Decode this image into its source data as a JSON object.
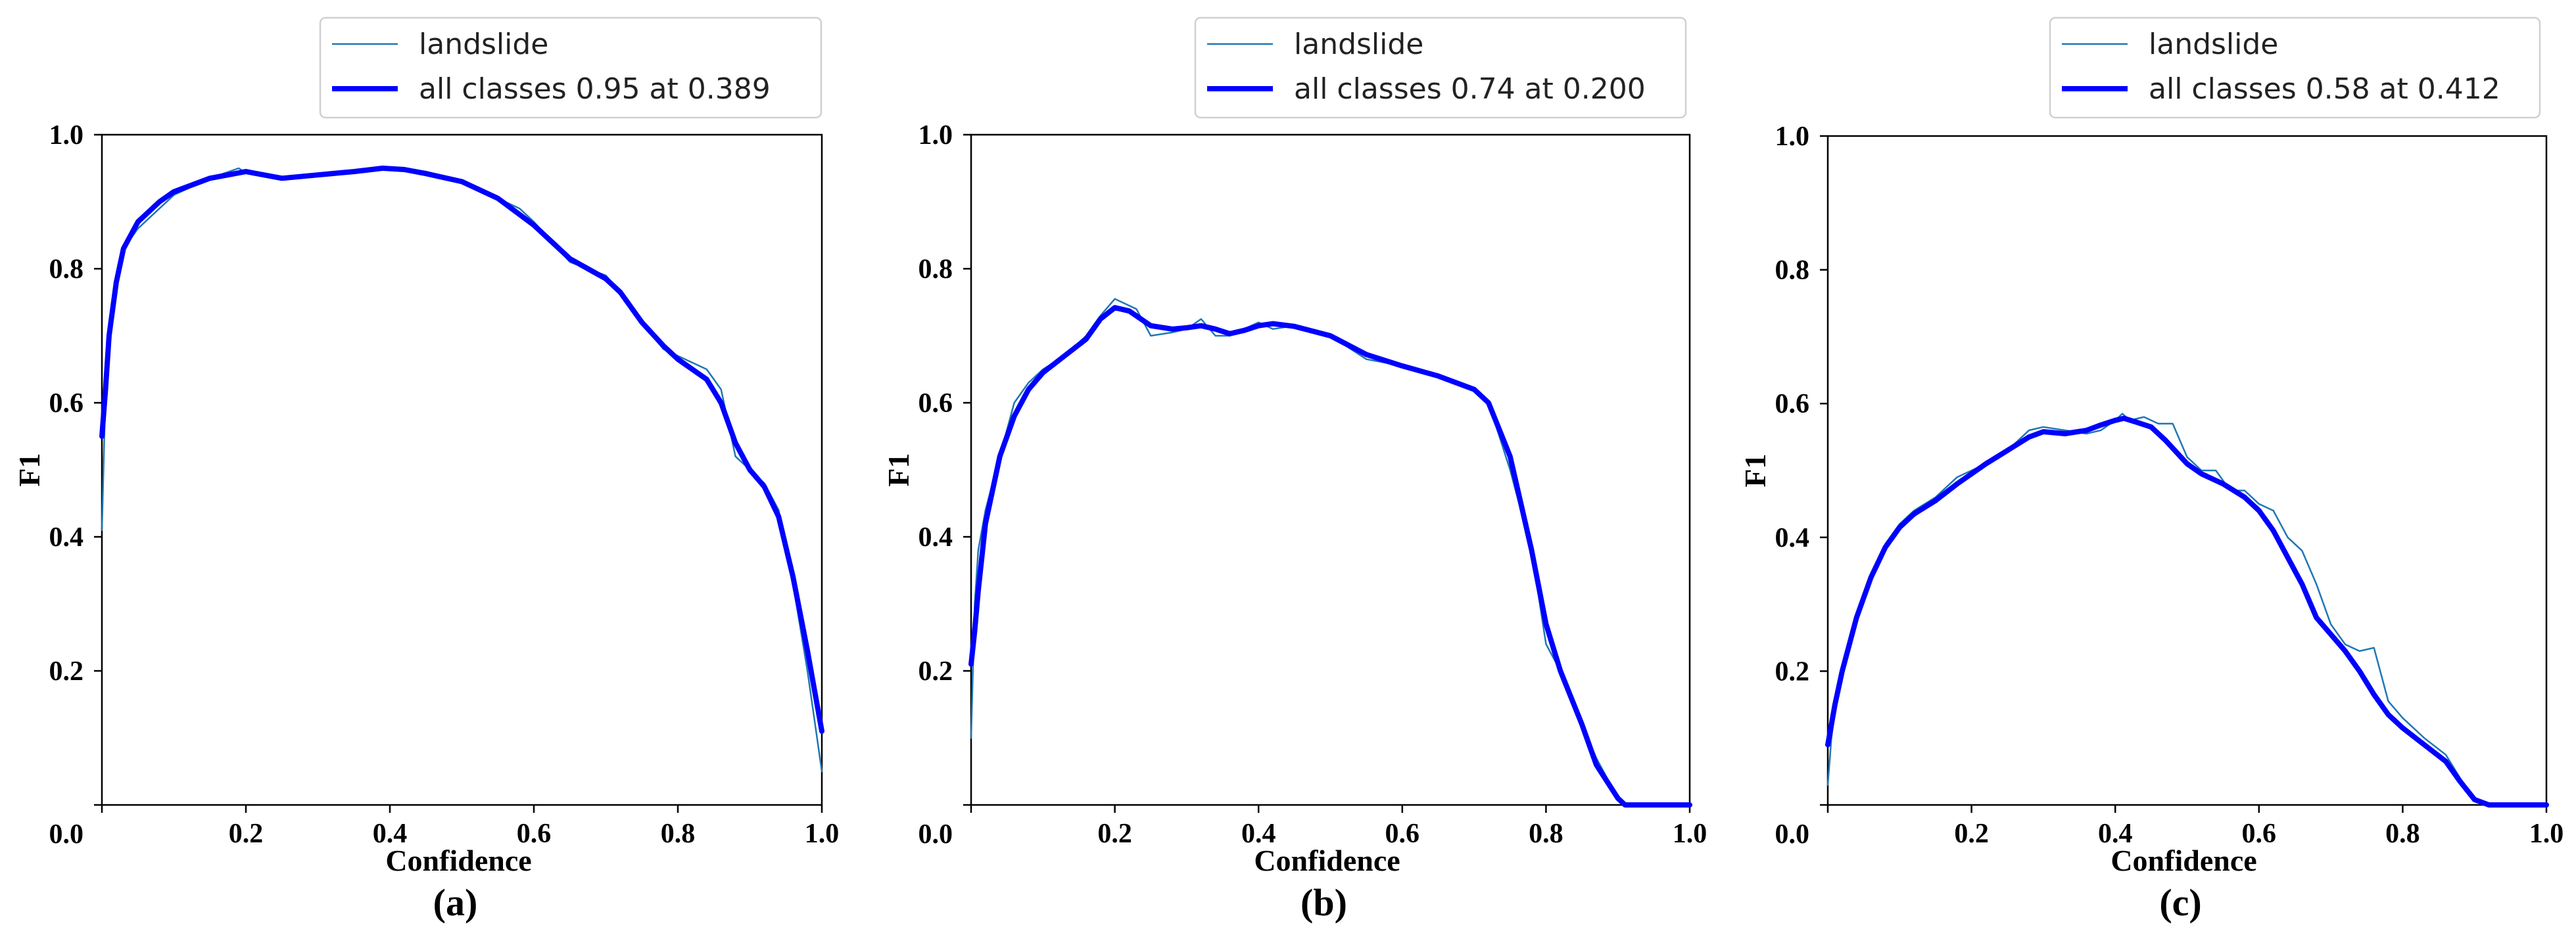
{
  "colors": {
    "landslide": "#1f77b4",
    "all_classes": "#0000ff"
  },
  "chart_data": [
    {
      "type": "line",
      "panel_label": "(a)",
      "xlabel": "Confidence",
      "ylabel": "F1",
      "xlim": [
        0,
        1
      ],
      "ylim": [
        0,
        1
      ],
      "xticks": [
        "0.0",
        "0.2",
        "0.4",
        "0.6",
        "0.8",
        "1.0"
      ],
      "yticks": [
        "0.0",
        "0.2",
        "0.4",
        "0.6",
        "0.8",
        "1.0"
      ],
      "legend_position": "top",
      "grid": false,
      "series": [
        {
          "name": "landslide",
          "x": [
            0.0,
            0.005,
            0.01,
            0.02,
            0.03,
            0.05,
            0.08,
            0.1,
            0.15,
            0.19,
            0.2,
            0.25,
            0.3,
            0.35,
            0.39,
            0.42,
            0.45,
            0.5,
            0.55,
            0.58,
            0.6,
            0.65,
            0.7,
            0.72,
            0.75,
            0.78,
            0.8,
            0.84,
            0.86,
            0.88,
            0.9,
            0.92,
            0.94,
            0.96,
            0.98,
            1.0
          ],
          "y": [
            0.41,
            0.62,
            0.72,
            0.78,
            0.83,
            0.86,
            0.89,
            0.91,
            0.935,
            0.95,
            0.943,
            0.935,
            0.94,
            0.945,
            0.952,
            0.95,
            0.945,
            0.93,
            0.905,
            0.89,
            0.87,
            0.81,
            0.79,
            0.765,
            0.72,
            0.68,
            0.67,
            0.65,
            0.62,
            0.52,
            0.5,
            0.48,
            0.44,
            0.33,
            0.2,
            0.05
          ]
        },
        {
          "name": "all classes 0.95 at 0.389",
          "x": [
            0.0,
            0.005,
            0.01,
            0.02,
            0.03,
            0.05,
            0.08,
            0.1,
            0.15,
            0.2,
            0.25,
            0.3,
            0.35,
            0.39,
            0.42,
            0.45,
            0.5,
            0.55,
            0.6,
            0.65,
            0.7,
            0.72,
            0.75,
            0.78,
            0.8,
            0.84,
            0.86,
            0.88,
            0.9,
            0.92,
            0.94,
            0.96,
            0.98,
            1.0
          ],
          "y": [
            0.55,
            0.62,
            0.7,
            0.78,
            0.83,
            0.87,
            0.9,
            0.915,
            0.935,
            0.945,
            0.935,
            0.94,
            0.945,
            0.95,
            0.948,
            0.942,
            0.93,
            0.905,
            0.865,
            0.815,
            0.785,
            0.765,
            0.72,
            0.685,
            0.665,
            0.635,
            0.6,
            0.54,
            0.5,
            0.475,
            0.43,
            0.34,
            0.23,
            0.11
          ]
        }
      ]
    },
    {
      "type": "line",
      "panel_label": "(b)",
      "xlabel": "Confidence",
      "ylabel": "F1",
      "xlim": [
        0,
        1
      ],
      "ylim": [
        0,
        1
      ],
      "xticks": [
        "0.0",
        "0.2",
        "0.4",
        "0.6",
        "0.8",
        "1.0"
      ],
      "yticks": [
        "0.0",
        "0.2",
        "0.4",
        "0.6",
        "0.8",
        "1.0"
      ],
      "legend_position": "top",
      "grid": false,
      "series": [
        {
          "name": "landslide",
          "x": [
            0.0,
            0.005,
            0.01,
            0.02,
            0.04,
            0.06,
            0.08,
            0.1,
            0.13,
            0.16,
            0.18,
            0.2,
            0.23,
            0.25,
            0.28,
            0.3,
            0.32,
            0.34,
            0.36,
            0.38,
            0.4,
            0.42,
            0.45,
            0.5,
            0.55,
            0.6,
            0.65,
            0.7,
            0.72,
            0.75,
            0.78,
            0.8,
            0.82,
            0.85,
            0.87,
            0.9,
            0.91,
            0.95,
            1.0
          ],
          "y": [
            0.1,
            0.3,
            0.38,
            0.44,
            0.52,
            0.6,
            0.63,
            0.65,
            0.67,
            0.7,
            0.73,
            0.755,
            0.74,
            0.7,
            0.705,
            0.71,
            0.725,
            0.7,
            0.7,
            0.71,
            0.72,
            0.71,
            0.715,
            0.7,
            0.665,
            0.655,
            0.64,
            0.62,
            0.6,
            0.5,
            0.38,
            0.24,
            0.2,
            0.12,
            0.07,
            0.01,
            0.0,
            0.0,
            0.0
          ]
        },
        {
          "name": "all classes 0.74 at 0.200",
          "x": [
            0.0,
            0.005,
            0.01,
            0.02,
            0.04,
            0.06,
            0.08,
            0.1,
            0.13,
            0.16,
            0.18,
            0.2,
            0.22,
            0.25,
            0.28,
            0.3,
            0.32,
            0.34,
            0.36,
            0.38,
            0.4,
            0.42,
            0.45,
            0.5,
            0.55,
            0.6,
            0.65,
            0.7,
            0.72,
            0.75,
            0.78,
            0.8,
            0.82,
            0.85,
            0.87,
            0.9,
            0.91,
            0.95,
            1.0
          ],
          "y": [
            0.21,
            0.26,
            0.32,
            0.42,
            0.52,
            0.58,
            0.62,
            0.645,
            0.67,
            0.695,
            0.725,
            0.742,
            0.737,
            0.715,
            0.71,
            0.712,
            0.715,
            0.71,
            0.703,
            0.708,
            0.715,
            0.718,
            0.714,
            0.7,
            0.672,
            0.655,
            0.64,
            0.62,
            0.6,
            0.52,
            0.38,
            0.27,
            0.2,
            0.12,
            0.06,
            0.01,
            0.0,
            0.0,
            0.0
          ]
        }
      ]
    },
    {
      "type": "line",
      "panel_label": "(c)",
      "xlabel": "Confidence",
      "ylabel": "F1",
      "xlim": [
        0,
        1
      ],
      "ylim": [
        0,
        1
      ],
      "xticks": [
        "0.0",
        "0.2",
        "0.4",
        "0.6",
        "0.8",
        "1.0"
      ],
      "yticks": [
        "0.0",
        "0.2",
        "0.4",
        "0.6",
        "0.8",
        "1.0"
      ],
      "legend_position": "top",
      "grid": false,
      "series": [
        {
          "name": "landslide",
          "x": [
            0.0,
            0.005,
            0.01,
            0.02,
            0.04,
            0.06,
            0.08,
            0.1,
            0.12,
            0.15,
            0.18,
            0.2,
            0.22,
            0.25,
            0.28,
            0.3,
            0.33,
            0.36,
            0.38,
            0.4,
            0.41,
            0.42,
            0.44,
            0.46,
            0.48,
            0.5,
            0.52,
            0.54,
            0.56,
            0.58,
            0.6,
            0.62,
            0.64,
            0.66,
            0.68,
            0.7,
            0.72,
            0.74,
            0.76,
            0.78,
            0.8,
            0.83,
            0.86,
            0.88,
            0.9,
            0.92,
            0.95,
            1.0
          ],
          "y": [
            0.03,
            0.1,
            0.14,
            0.2,
            0.28,
            0.34,
            0.39,
            0.42,
            0.44,
            0.46,
            0.49,
            0.5,
            0.51,
            0.53,
            0.56,
            0.565,
            0.56,
            0.555,
            0.56,
            0.575,
            0.585,
            0.575,
            0.58,
            0.57,
            0.57,
            0.52,
            0.5,
            0.5,
            0.47,
            0.47,
            0.45,
            0.44,
            0.4,
            0.38,
            0.33,
            0.27,
            0.24,
            0.23,
            0.235,
            0.155,
            0.13,
            0.1,
            0.075,
            0.04,
            0.01,
            0.0,
            0.0,
            0.0
          ]
        },
        {
          "name": "all classes 0.58 at 0.412",
          "x": [
            0.0,
            0.005,
            0.01,
            0.02,
            0.04,
            0.06,
            0.08,
            0.1,
            0.12,
            0.15,
            0.18,
            0.2,
            0.22,
            0.25,
            0.28,
            0.3,
            0.33,
            0.36,
            0.38,
            0.4,
            0.412,
            0.43,
            0.45,
            0.47,
            0.5,
            0.52,
            0.55,
            0.58,
            0.6,
            0.62,
            0.64,
            0.66,
            0.68,
            0.7,
            0.72,
            0.74,
            0.76,
            0.78,
            0.8,
            0.83,
            0.86,
            0.88,
            0.9,
            0.92,
            0.95,
            1.0
          ],
          "y": [
            0.09,
            0.12,
            0.15,
            0.2,
            0.28,
            0.34,
            0.385,
            0.415,
            0.435,
            0.455,
            0.48,
            0.495,
            0.51,
            0.53,
            0.55,
            0.558,
            0.555,
            0.56,
            0.568,
            0.575,
            0.578,
            0.572,
            0.565,
            0.545,
            0.51,
            0.495,
            0.48,
            0.46,
            0.44,
            0.41,
            0.37,
            0.33,
            0.28,
            0.255,
            0.23,
            0.2,
            0.165,
            0.135,
            0.115,
            0.09,
            0.065,
            0.035,
            0.008,
            0.0,
            0.0,
            0.0
          ]
        }
      ]
    }
  ]
}
